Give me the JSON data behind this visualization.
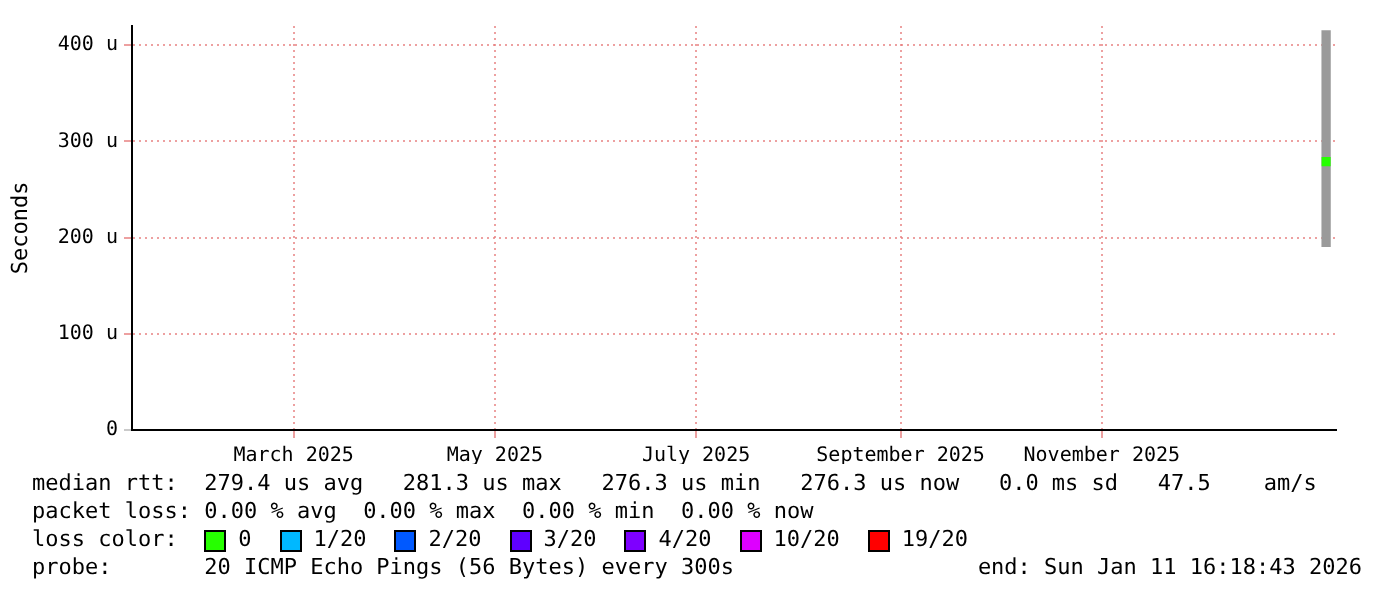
{
  "chart_data": {
    "type": "bar",
    "ylabel": "Seconds",
    "legend_title": "loss color:",
    "legend": "bottom",
    "grid": true,
    "xlim": [
      "2025-01-11",
      "2026-01-11"
    ],
    "xticks": [
      {
        "value": "2025-03-01",
        "label": "March 2025"
      },
      {
        "value": "2025-05-01",
        "label": "May 2025"
      },
      {
        "value": "2025-07-01",
        "label": "July 2025"
      },
      {
        "value": "2025-09-01",
        "label": "September 2025"
      },
      {
        "value": "2025-11-01",
        "label": "November 2025"
      }
    ],
    "ylim": [
      0,
      420
    ],
    "yticks": [
      0,
      {
        "value": 100,
        "label": "100 u"
      },
      {
        "value": 200,
        "label": "200 u"
      },
      {
        "value": 300,
        "label": "300 u"
      },
      {
        "value": 400,
        "label": "400 u"
      }
    ],
    "series": [
      {
        "color": "#9a9a9a",
        "x": [
          "2026-01-08"
        ],
        "base": [
          191
        ],
        "values": [
          224
        ]
      },
      {
        "type": "scatter",
        "marker": "square",
        "name": "0",
        "color": "#26ff00",
        "x": [
          "2026-01-08"
        ],
        "values": [
          279
        ]
      },
      {
        "name": "1/20",
        "color": "#00b8ff"
      },
      {
        "name": "2/20",
        "color": "#0059ff"
      },
      {
        "name": "3/20",
        "color": "#5e00ff"
      },
      {
        "name": "4/20",
        "color": "#7e00ff"
      },
      {
        "name": "10/20",
        "color": "#dd00ff"
      },
      {
        "name": "19/20",
        "color": "#ff0000"
      }
    ],
    "annotations": [
      "median rtt:  279.4 us avg   281.3 us max   276.3 us min   276.3 us now   0.0 ms sd   47.5    am/s",
      "packet loss: 0.00 % avg  0.00 % max  0.00 % min  0.00 % now",
      "probe:       20 ICMP Echo Pings (56 Bytes) every 300s",
      "end: Sun Jan 11 16:18:43 2026"
    ]
  }
}
